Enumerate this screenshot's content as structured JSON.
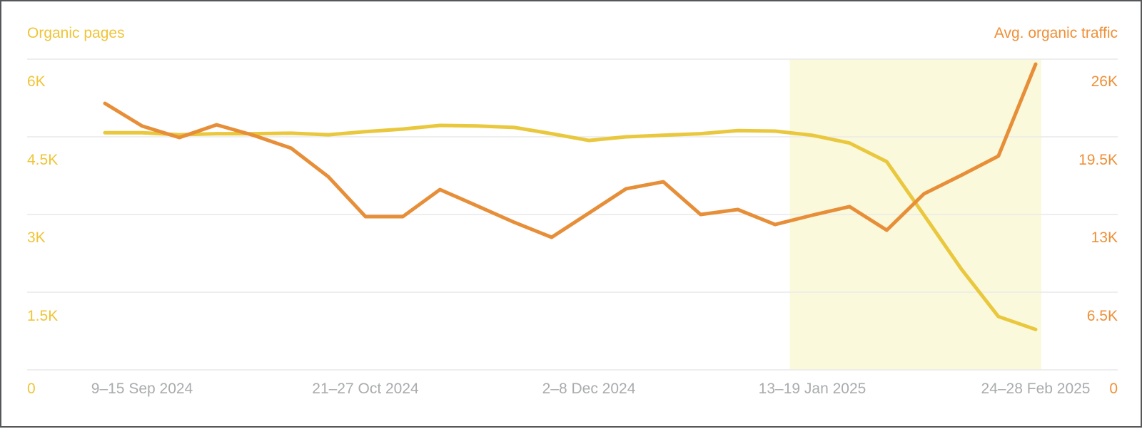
{
  "chart_data": {
    "type": "line",
    "title": "",
    "x_unit": "week",
    "num_points": 26,
    "x_tick_labels": [
      {
        "index": 1,
        "label": "9–15 Sep 2024"
      },
      {
        "index": 7,
        "label": "21–27 Oct 2024"
      },
      {
        "index": 13,
        "label": "2–8 Dec 2024"
      },
      {
        "index": 19,
        "label": "13–19 Jan 2025"
      },
      {
        "index": 25,
        "label": "24–28 Feb 2025"
      }
    ],
    "left_axis": {
      "label": "Organic pages",
      "range": [
        0,
        6000
      ],
      "tick_values": [
        0,
        1500,
        3000,
        4500,
        6000
      ],
      "ticks": [
        "0",
        "1.5K",
        "3K",
        "4.5K",
        "6K"
      ],
      "text_color": "#f0c437"
    },
    "right_axis": {
      "label": "Avg. organic traffic",
      "range": [
        0,
        26000
      ],
      "tick_values": [
        0,
        6500,
        13000,
        19500,
        26000
      ],
      "ticks": [
        "0",
        "6.5K",
        "13K",
        "19.5K",
        "26K"
      ],
      "text_color": "#ee9038"
    },
    "series": [
      {
        "name": "Organic pages",
        "axis": "left",
        "color": "#e9c83e",
        "values": [
          4580,
          4580,
          4540,
          4560,
          4560,
          4570,
          4540,
          4600,
          4650,
          4720,
          4710,
          4680,
          4560,
          4430,
          4500,
          4530,
          4560,
          4620,
          4610,
          4530,
          4380,
          4020,
          2990,
          1950,
          1030,
          780
        ]
      },
      {
        "name": "Avg. organic traffic",
        "axis": "right",
        "color": "#e78e38",
        "values": [
          22300,
          20400,
          19440,
          20510,
          19620,
          18550,
          16160,
          12820,
          12820,
          15090,
          13720,
          12340,
          11090,
          13120,
          15150,
          15740,
          13000,
          13420,
          12160,
          12940,
          13660,
          11690,
          14730,
          16280,
          17890,
          25580
        ]
      }
    ],
    "highlight_region": {
      "from_index": 18.4,
      "to_index": 25.15,
      "color": "#fbf9db"
    },
    "grid": {
      "horizontal": true,
      "vertical": false,
      "color": "#e9e9e9"
    },
    "legend_position": "top-corners"
  }
}
